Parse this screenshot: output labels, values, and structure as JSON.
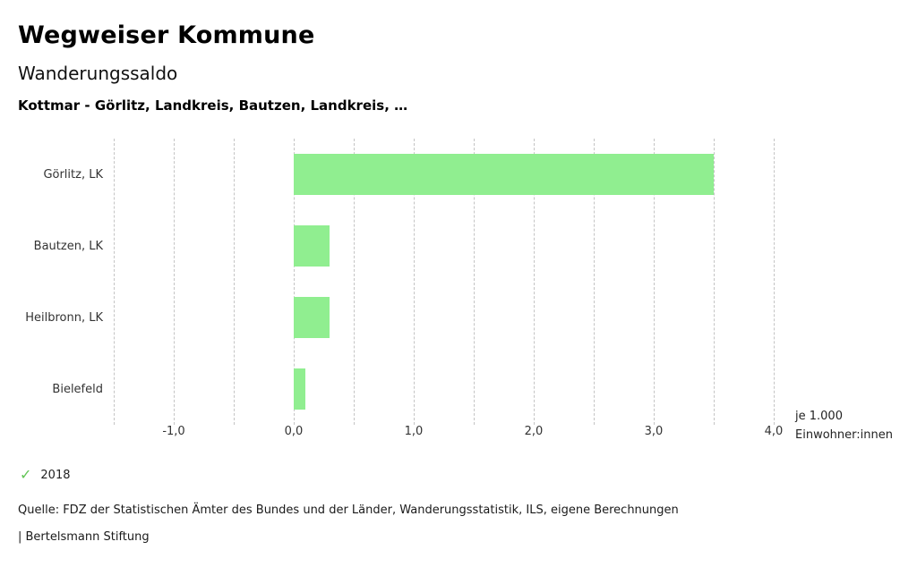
{
  "header": {
    "title": "Wegweiser Kommune",
    "subtitle": "Wanderungssaldo",
    "selection": "Kottmar - Görlitz, Landkreis, Bautzen, Landkreis, …"
  },
  "chart_data": {
    "type": "bar",
    "orientation": "horizontal",
    "title": "Wanderungssaldo",
    "categories": [
      "Görlitz, LK",
      "Bautzen, LK",
      "Heilbronn, LK",
      "Bielefeld"
    ],
    "series": [
      {
        "name": "2018",
        "values": [
          3.5,
          0.3,
          0.3,
          0.1
        ]
      }
    ],
    "xlim": [
      -1.5,
      4.0
    ],
    "grid_step": 0.5,
    "x_ticks": [
      {
        "value": -1,
        "label": "-1,0"
      },
      {
        "value": 0,
        "label": "0,0"
      },
      {
        "value": 1,
        "label": "1,0"
      },
      {
        "value": 2,
        "label": "2,0"
      },
      {
        "value": 3,
        "label": "3,0"
      },
      {
        "value": 4,
        "label": "4,0"
      }
    ],
    "unit_label_line1": "je 1.000",
    "unit_label_line2": "Einwohner:innen",
    "bar_color": "#90ee90",
    "grid": true,
    "legend_position": "bottom-left"
  },
  "legend": {
    "check_icon": "✓",
    "check_color": "#62c555",
    "label": "2018"
  },
  "footer": {
    "source": "Quelle: FDZ der Statistischen Ämter des Bundes und der Länder, Wanderungsstatistik, ILS, eigene Berechnungen",
    "branding": "| Bertelsmann Stiftung"
  }
}
